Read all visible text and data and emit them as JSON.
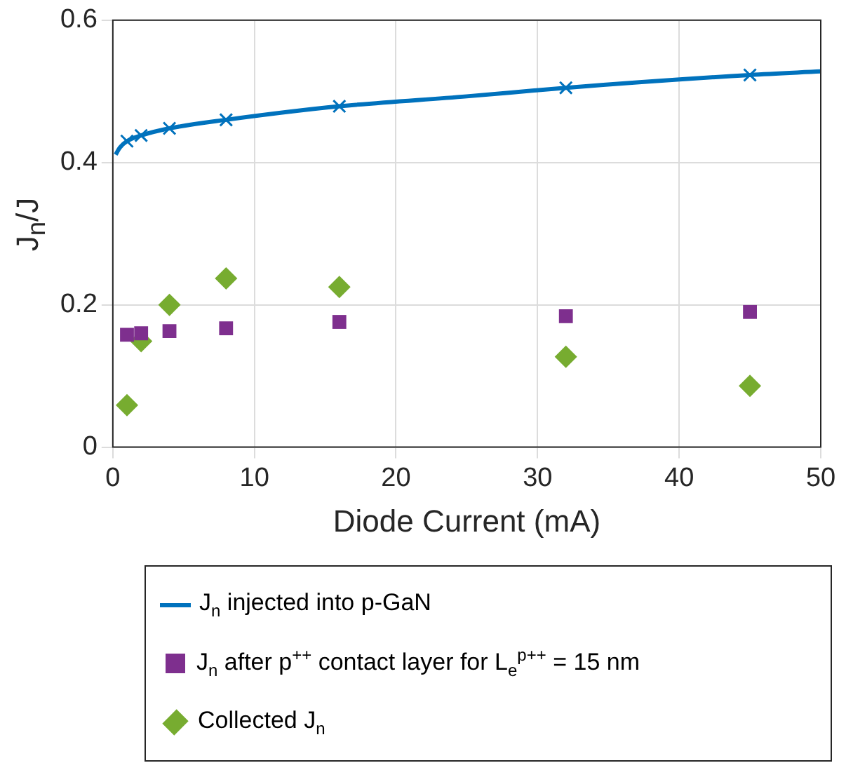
{
  "chart_data": {
    "type": "scatter",
    "xlabel": "Diode Current (mA)",
    "ylabel": "J$_{n}$/J",
    "xlim": [
      0,
      50
    ],
    "xticks": [
      0,
      10,
      20,
      30,
      40,
      50
    ],
    "ylim": [
      0,
      0.6
    ],
    "yticks": [
      0,
      0.2,
      0.4,
      0.6
    ],
    "grid": true,
    "legend": "bottom",
    "series": [
      {
        "name": "J$_{n}$ injected into p-GaN",
        "type": "line",
        "color": "#0072bd",
        "marker": "none",
        "x": [
          0.2,
          0.5,
          1,
          2,
          4,
          8,
          16,
          25,
          32,
          45,
          50
        ],
        "values": [
          0.411,
          0.421,
          0.43,
          0.438,
          0.448,
          0.46,
          0.479,
          0.493,
          0.505,
          0.523,
          0.528
        ]
      },
      {
        "type": "scatter",
        "color": "#0072bd",
        "marker": "cross",
        "x": [
          1,
          2,
          4,
          8,
          16,
          32,
          45
        ],
        "values": [
          0.43,
          0.438,
          0.448,
          0.46,
          0.479,
          0.505,
          0.523
        ]
      },
      {
        "name": "J$_{n}$ after p$^{++}$ contact layer for L$_{e}$$^{p++}$ = 15 nm",
        "type": "scatter",
        "color": "#7e2f8e",
        "marker": "square",
        "x": [
          1,
          2,
          4,
          8,
          16,
          32,
          45
        ],
        "values": [
          0.158,
          0.16,
          0.163,
          0.167,
          0.176,
          0.184,
          0.19
        ]
      },
      {
        "name": "Collected J$_{n}$",
        "type": "scatter",
        "color": "#77ac30",
        "marker": "diamond",
        "x": [
          1,
          2,
          4,
          8,
          16,
          32,
          45
        ],
        "values": [
          0.059,
          0.149,
          0.2,
          0.237,
          0.225,
          0.127,
          0.086
        ]
      }
    ]
  }
}
